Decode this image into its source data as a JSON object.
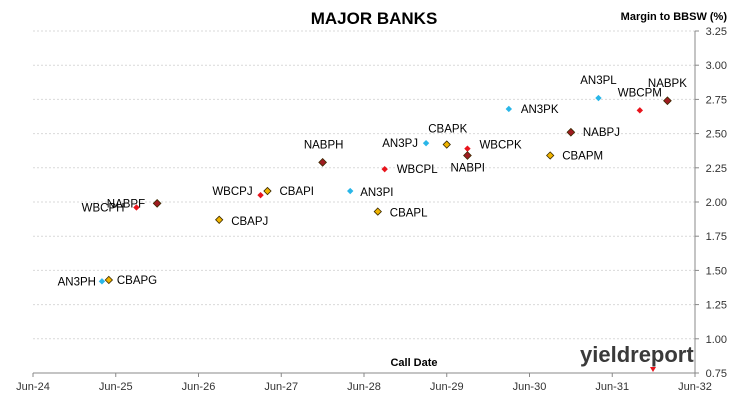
{
  "chart_data": {
    "type": "scatter",
    "title": "MAJOR BANKS",
    "xlabel": "Call Date",
    "ylabel": "Margin to BBSW (%)",
    "x_ticks": [
      "Jun-24",
      "Jun-25",
      "Jun-26",
      "Jun-27",
      "Jun-28",
      "Jun-29",
      "Jun-30",
      "Jun-31",
      "Jun-32"
    ],
    "xlim": [
      "Jun-24",
      "Jun-32"
    ],
    "ylim": [
      0.75,
      3.25
    ],
    "y_ticks": [
      "0.75",
      "1.00",
      "1.25",
      "1.50",
      "1.75",
      "2.00",
      "2.25",
      "2.50",
      "2.75",
      "3.00",
      "3.25"
    ],
    "grid": true,
    "colors": {
      "ANZ": "#29b6e8",
      "CBA": "#f0b400",
      "WBC": "#e8141c",
      "NAB": "#9e1b20"
    },
    "points": [
      {
        "label": "AN3PH",
        "x": "2025-04",
        "y": 1.42,
        "issuer": "ANZ"
      },
      {
        "label": "CBAPG",
        "x": "2025-05",
        "y": 1.43,
        "issuer": "CBA"
      },
      {
        "label": "WBCPH",
        "x": "2025-09",
        "y": 1.96,
        "issuer": "WBC"
      },
      {
        "label": "NABPF",
        "x": "2025-12",
        "y": 1.99,
        "issuer": "NAB"
      },
      {
        "label": "CBAPJ",
        "x": "2026-09",
        "y": 1.87,
        "issuer": "CBA"
      },
      {
        "label": "WBCPJ",
        "x": "2027-03",
        "y": 2.05,
        "issuer": "WBC"
      },
      {
        "label": "CBAPI",
        "x": "2027-04",
        "y": 2.08,
        "issuer": "CBA"
      },
      {
        "label": "NABPH",
        "x": "2027-12",
        "y": 2.29,
        "issuer": "NAB"
      },
      {
        "label": "AN3PI",
        "x": "2028-04",
        "y": 2.08,
        "issuer": "ANZ"
      },
      {
        "label": "CBAPL",
        "x": "2028-08",
        "y": 1.93,
        "issuer": "CBA"
      },
      {
        "label": "WBCPL",
        "x": "2028-09",
        "y": 2.24,
        "issuer": "WBC"
      },
      {
        "label": "AN3PJ",
        "x": "2029-03",
        "y": 2.43,
        "issuer": "ANZ"
      },
      {
        "label": "CBAPK",
        "x": "2029-06",
        "y": 2.42,
        "issuer": "CBA"
      },
      {
        "label": "WBCPK",
        "x": "2029-09",
        "y": 2.39,
        "issuer": "WBC"
      },
      {
        "label": "NABPI",
        "x": "2029-09",
        "y": 2.34,
        "issuer": "NAB"
      },
      {
        "label": "AN3PK",
        "x": "2030-03",
        "y": 2.68,
        "issuer": "ANZ"
      },
      {
        "label": "CBAPM",
        "x": "2030-09",
        "y": 2.34,
        "issuer": "CBA"
      },
      {
        "label": "NABPJ",
        "x": "2030-12",
        "y": 2.51,
        "issuer": "NAB"
      },
      {
        "label": "AN3PL",
        "x": "2031-04",
        "y": 2.76,
        "issuer": "ANZ"
      },
      {
        "label": "WBCPM",
        "x": "2031-10",
        "y": 2.67,
        "issuer": "WBC"
      },
      {
        "label": "NABPK",
        "x": "2032-02",
        "y": 2.74,
        "issuer": "NAB"
      }
    ]
  },
  "logo": {
    "text": "yieldreport"
  }
}
